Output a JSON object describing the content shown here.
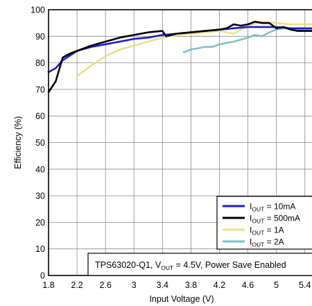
{
  "chart_data": {
    "type": "line",
    "xlabel": "Input Voltage (V)",
    "ylabel": "Efficiency (%)",
    "xlim": [
      1.8,
      5.5
    ],
    "ylim": [
      0,
      100
    ],
    "x_ticks": [
      "1.8",
      "2.2",
      "2.6",
      "3",
      "3.4",
      "3.8",
      "4.2",
      "4.6",
      "5",
      "5.4"
    ],
    "y_ticks": [
      "0",
      "10",
      "20",
      "30",
      "40",
      "50",
      "60",
      "70",
      "80",
      "90",
      "100"
    ],
    "grid": true,
    "legend_position": "bottom-right",
    "annotation": {
      "prefix": "TPS63020-Q1, V",
      "sub": "OUT",
      "suffix": " = 4.5V, Power Save Enabled"
    },
    "series": [
      {
        "label_main": "I",
        "label_sub": "OUT",
        "label_rest": " = 10mA",
        "color": "#1a1ad6",
        "x": [
          1.8,
          1.9,
          2.0,
          2.2,
          2.4,
          2.6,
          2.8,
          3.0,
          3.2,
          3.4,
          3.6,
          3.8,
          4.0,
          4.2,
          4.4,
          4.6,
          4.8,
          5.0,
          5.2,
          5.4,
          5.5
        ],
        "y": [
          76.5,
          78,
          81,
          84.5,
          86,
          87,
          88,
          89,
          89.5,
          90.5,
          91,
          91.5,
          92,
          92.5,
          93,
          93.5,
          93.5,
          93.5,
          93,
          93,
          93
        ]
      },
      {
        "label_main": "I",
        "label_sub": "OUT",
        "label_rest": " = 500mA",
        "color": "#000000",
        "x": [
          1.8,
          1.9,
          2.0,
          2.1,
          2.2,
          2.4,
          2.6,
          2.8,
          3.0,
          3.2,
          3.4,
          3.45,
          3.6,
          3.8,
          4.0,
          4.2,
          4.3,
          4.4,
          4.5,
          4.6,
          4.7,
          4.8,
          4.9,
          5.0,
          5.1,
          5.2,
          5.3,
          5.4,
          5.5
        ],
        "y": [
          69,
          73,
          82,
          83.5,
          84.5,
          86.5,
          88,
          89.5,
          90.5,
          91.5,
          92,
          90,
          91,
          91.5,
          92,
          92.5,
          93,
          94.5,
          94,
          94.5,
          95.5,
          95,
          95,
          93,
          93.5,
          92.5,
          92,
          92,
          92
        ]
      },
      {
        "label_main": "I",
        "label_sub": "OUT",
        "label_rest": " = 1A",
        "color": "#ece087",
        "x": [
          2.2,
          2.4,
          2.6,
          2.8,
          3.0,
          3.2,
          3.4,
          3.6,
          3.8,
          4.0,
          4.2,
          4.4,
          4.6,
          4.8,
          5.0,
          5.2,
          5.4,
          5.5
        ],
        "y": [
          75,
          79,
          82.5,
          85,
          86.5,
          88,
          89.5,
          90.5,
          91,
          91.5,
          92,
          91,
          94,
          95.5,
          95,
          94.5,
          94.5,
          94.5
        ]
      },
      {
        "label_main": "I",
        "label_sub": "OUT",
        "label_rest": " = 2A",
        "color": "#7cc2c8",
        "x": [
          3.7,
          3.8,
          3.9,
          4.0,
          4.1,
          4.2,
          4.4,
          4.6,
          4.7,
          4.8,
          4.9,
          5.0,
          5.1,
          5.2,
          5.3,
          5.4,
          5.5
        ],
        "y": [
          84,
          85,
          85.5,
          86,
          86,
          87,
          88,
          89.5,
          90.5,
          90,
          91.5,
          92.5,
          93,
          93,
          92.5,
          92.5,
          92.5
        ]
      }
    ]
  }
}
